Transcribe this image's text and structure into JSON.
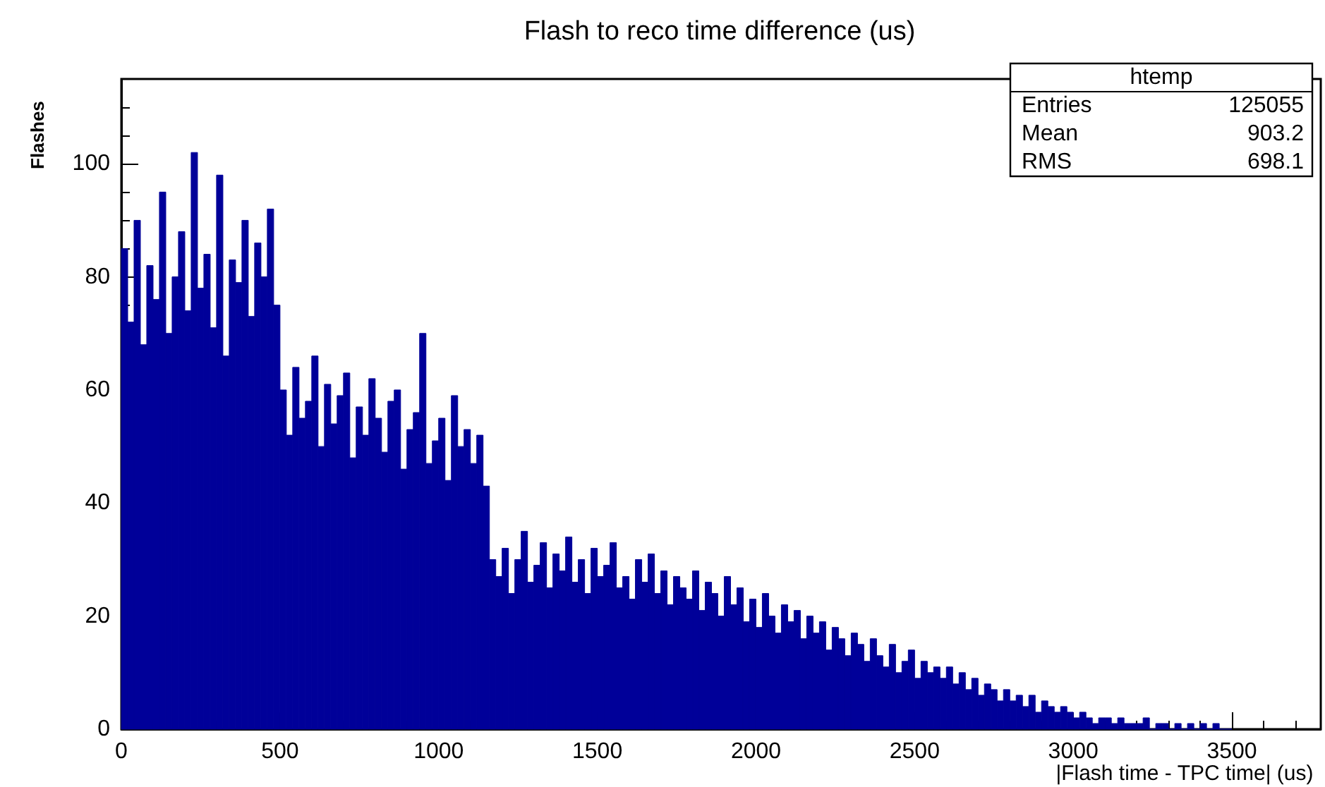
{
  "chart_data": {
    "type": "histogram",
    "title": "Flash to reco time difference (us)",
    "xlabel": "|Flash time - TPC time| (us)",
    "ylabel": "Flashes",
    "color": "#000099",
    "bins": [
      0,
      20,
      40,
      60,
      80,
      100,
      120,
      140,
      160,
      180,
      200,
      220,
      240,
      260,
      280,
      300,
      320,
      340,
      360,
      380,
      400,
      420,
      440,
      460,
      480,
      500,
      520,
      540,
      560,
      580,
      600,
      620,
      640,
      660,
      680,
      700,
      720,
      740,
      760,
      780,
      800,
      820,
      840,
      860,
      880,
      900,
      920,
      940,
      960,
      980,
      1000,
      1020,
      1040,
      1060,
      1080,
      1100,
      1120,
      1140,
      1160,
      1180,
      1200,
      1220,
      1240,
      1260,
      1280,
      1300,
      1320,
      1340,
      1360,
      1380,
      1400,
      1420,
      1440,
      1460,
      1480,
      1500,
      1520,
      1540,
      1560,
      1580,
      1600,
      1620,
      1640,
      1660,
      1680,
      1700,
      1720,
      1740,
      1760,
      1780,
      1800,
      1820,
      1840,
      1860,
      1880,
      1900,
      1920,
      1940,
      1960,
      1980,
      2000,
      2020,
      2040,
      2060,
      2080,
      2100,
      2120,
      2140,
      2160,
      2180,
      2200,
      2220,
      2240,
      2260,
      2280,
      2300,
      2320,
      2340,
      2360,
      2380,
      2400,
      2420,
      2440,
      2460,
      2480,
      2500,
      2520,
      2540,
      2560,
      2580,
      2600,
      2620,
      2640,
      2660,
      2680,
      2700,
      2720,
      2740,
      2760,
      2780,
      2800,
      2820,
      2840,
      2860,
      2880,
      2900,
      2920,
      2940,
      2960,
      2980,
      3000,
      3020,
      3040,
      3060,
      3080,
      3100,
      3120,
      3140,
      3160,
      3180,
      3200,
      3220,
      3240,
      3260,
      3280,
      3300,
      3320,
      3340,
      3360,
      3380,
      3400,
      3420,
      3440,
      3460,
      3480,
      3500
    ],
    "values": [
      85,
      72,
      90,
      68,
      82,
      76,
      95,
      70,
      80,
      88,
      74,
      102,
      78,
      84,
      71,
      98,
      66,
      83,
      79,
      90,
      73,
      86,
      80,
      92,
      75,
      60,
      52,
      64,
      55,
      58,
      66,
      50,
      61,
      54,
      59,
      63,
      48,
      57,
      52,
      62,
      55,
      49,
      58,
      60,
      46,
      53,
      56,
      70,
      47,
      51,
      55,
      44,
      59,
      50,
      53,
      47,
      52,
      43,
      30,
      27,
      32,
      24,
      30,
      35,
      26,
      29,
      33,
      25,
      31,
      28,
      34,
      26,
      30,
      24,
      32,
      27,
      29,
      33,
      25,
      27,
      23,
      30,
      26,
      31,
      24,
      28,
      22,
      27,
      25,
      23,
      28,
      21,
      26,
      24,
      20,
      27,
      22,
      25,
      19,
      23,
      18,
      24,
      20,
      17,
      22,
      19,
      21,
      16,
      20,
      17,
      19,
      14,
      18,
      16,
      13,
      17,
      15,
      12,
      16,
      13,
      11,
      15,
      10,
      12,
      14,
      9,
      12,
      10,
      11,
      9,
      11,
      8,
      10,
      7,
      9,
      6,
      8,
      7,
      5,
      7,
      5,
      6,
      4,
      6,
      3,
      5,
      4,
      3,
      4,
      3,
      2,
      3,
      2,
      1,
      2,
      2,
      1,
      2,
      1,
      1,
      1,
      2,
      0,
      1,
      1,
      0,
      1,
      0,
      1,
      0,
      1,
      0,
      1,
      0,
      0
    ],
    "xlim": [
      0,
      3780
    ],
    "xticks": [
      0,
      500,
      1000,
      1500,
      2000,
      2500,
      3000,
      3500
    ],
    "ylim": [
      0,
      115
    ],
    "yticks": [
      0,
      20,
      40,
      60,
      80,
      100
    ],
    "annotations": [
      "htemp",
      "Entries 125055",
      "Mean 903.2",
      "RMS 698.1"
    ]
  }
}
